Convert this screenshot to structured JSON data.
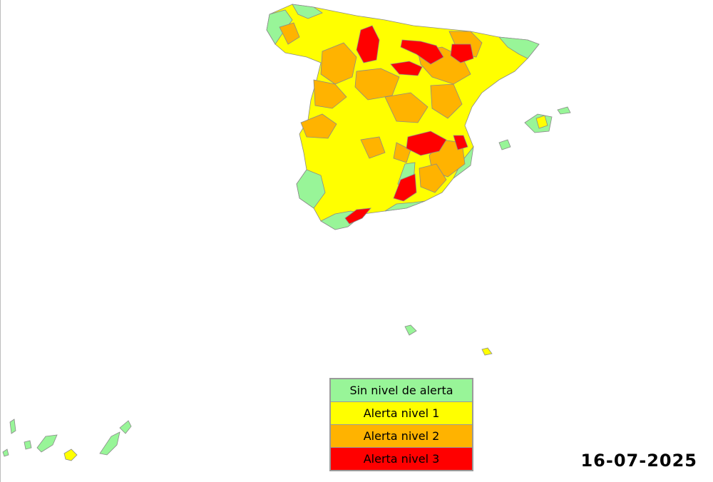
{
  "colors": {
    "none": "#98f598",
    "level1": "#ffff00",
    "level2": "#ffb300",
    "level3": "#ff0000",
    "border": "#8a8a8a"
  },
  "legend": {
    "items": [
      {
        "label": "Sin nivel de alerta",
        "color": "#98f598"
      },
      {
        "label": "Alerta nivel 1",
        "color": "#ffff00"
      },
      {
        "label": "Alerta nivel 2",
        "color": "#ffb300"
      },
      {
        "label": "Alerta nivel 3",
        "color": "#ff0000"
      }
    ]
  },
  "date": "16-07-2025"
}
